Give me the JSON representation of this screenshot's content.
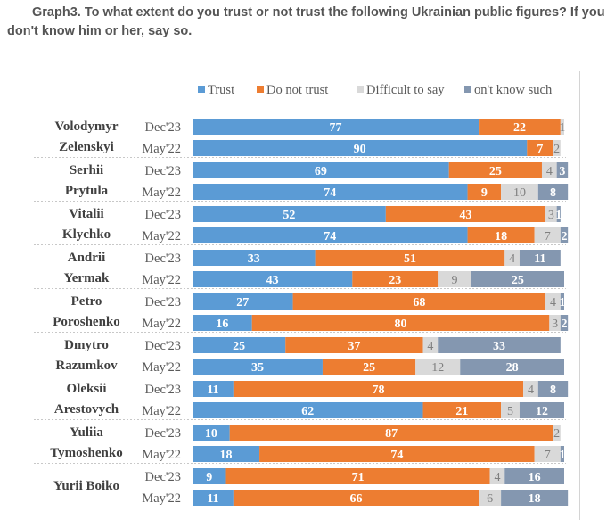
{
  "chart_data": {
    "type": "bar",
    "orientation": "horizontal",
    "stacked": true,
    "title": "Graph3. To what extent do you trust or not trust the following Ukrainian public figures? If you don't know him or her, say so.",
    "xlabel": "",
    "ylabel": "",
    "xlim": [
      0,
      100
    ],
    "grid": false,
    "legend_position": "top",
    "legend": [
      {
        "key": "trust",
        "label": "Trust",
        "color": "#5B9BD5"
      },
      {
        "key": "distrust",
        "label": "Do not trust",
        "color": "#ED7D31"
      },
      {
        "key": "difficult",
        "label": "Difficult to say",
        "color": "#D9D9D9"
      },
      {
        "key": "dont_know",
        "label": "on't know such",
        "color": "#8497B0"
      }
    ],
    "periods": [
      "Dec'23",
      "May'22"
    ],
    "groups": [
      {
        "name": [
          "Volodymyr",
          "Zelenskyi"
        ],
        "rows": [
          {
            "period": "Dec'23",
            "values": [
              77,
              22,
              1,
              0
            ],
            "labels": [
              "77",
              "22",
              "1",
              ""
            ]
          },
          {
            "period": "May'22",
            "values": [
              90,
              7,
              2,
              0
            ],
            "labels": [
              "90",
              "7",
              "2",
              ""
            ]
          }
        ]
      },
      {
        "name": [
          "Serhii",
          "Prytula"
        ],
        "rows": [
          {
            "period": "Dec'23",
            "values": [
              69,
              25,
              4,
              3
            ],
            "labels": [
              "69",
              "25",
              "4",
              "3"
            ]
          },
          {
            "period": "May'22",
            "values": [
              74,
              9,
              10,
              8
            ],
            "labels": [
              "74",
              "9",
              "10",
              "8"
            ]
          }
        ]
      },
      {
        "name": [
          "Vitalii",
          "Klychko"
        ],
        "rows": [
          {
            "period": "Dec'23",
            "values": [
              52,
              43,
              3,
              1
            ],
            "labels": [
              "52",
              "43",
              "3",
              "1"
            ]
          },
          {
            "period": "May'22",
            "values": [
              74,
              18,
              7,
              2
            ],
            "labels": [
              "74",
              "18",
              "7",
              "2"
            ]
          }
        ]
      },
      {
        "name": [
          "Andrii",
          "Yermak"
        ],
        "rows": [
          {
            "period": "Dec'23",
            "values": [
              33,
              51,
              4,
              11
            ],
            "labels": [
              "33",
              "51",
              "4",
              "11"
            ]
          },
          {
            "period": "May'22",
            "values": [
              43,
              23,
              9,
              25
            ],
            "labels": [
              "43",
              "23",
              "9",
              "25"
            ]
          }
        ]
      },
      {
        "name": [
          "Petro",
          "Poroshenko"
        ],
        "rows": [
          {
            "period": "Dec'23",
            "values": [
              27,
              68,
              4,
              1
            ],
            "labels": [
              "27",
              "68",
              "4",
              "1"
            ]
          },
          {
            "period": "May'22",
            "values": [
              16,
              80,
              3,
              2
            ],
            "labels": [
              "16",
              "80",
              "3",
              "2"
            ]
          }
        ]
      },
      {
        "name": [
          "Dmytro",
          "Razumkov"
        ],
        "rows": [
          {
            "period": "Dec'23",
            "values": [
              25,
              37,
              4,
              33
            ],
            "labels": [
              "25",
              "37",
              "4",
              "33"
            ]
          },
          {
            "period": "May'22",
            "values": [
              35,
              25,
              12,
              28
            ],
            "labels": [
              "35",
              "25",
              "12",
              "28"
            ]
          }
        ]
      },
      {
        "name": [
          "Oleksii",
          "Arestovych"
        ],
        "rows": [
          {
            "period": "Dec'23",
            "values": [
              11,
              78,
              4,
              8
            ],
            "labels": [
              "11",
              "78",
              "4",
              "8"
            ]
          },
          {
            "period": "May'22",
            "values": [
              62,
              21,
              5,
              12
            ],
            "labels": [
              "62",
              "21",
              "5",
              "12"
            ]
          }
        ]
      },
      {
        "name": [
          "Yuliia",
          "Tymoshenko"
        ],
        "rows": [
          {
            "period": "Dec'23",
            "values": [
              10,
              87,
              2,
              0
            ],
            "labels": [
              "10",
              "87",
              "2",
              ""
            ]
          },
          {
            "period": "May'22",
            "values": [
              18,
              74,
              7,
              1
            ],
            "labels": [
              "18",
              "74",
              "7",
              "1"
            ]
          }
        ]
      },
      {
        "name": [
          "Yurii Boiko"
        ],
        "rows": [
          {
            "period": "Dec'23",
            "values": [
              9,
              71,
              4,
              16
            ],
            "labels": [
              "9",
              "71",
              "4",
              "16"
            ]
          },
          {
            "period": "May'22",
            "values": [
              11,
              66,
              6,
              18
            ],
            "labels": [
              "11",
              "66",
              "6",
              "18"
            ]
          }
        ]
      }
    ]
  }
}
